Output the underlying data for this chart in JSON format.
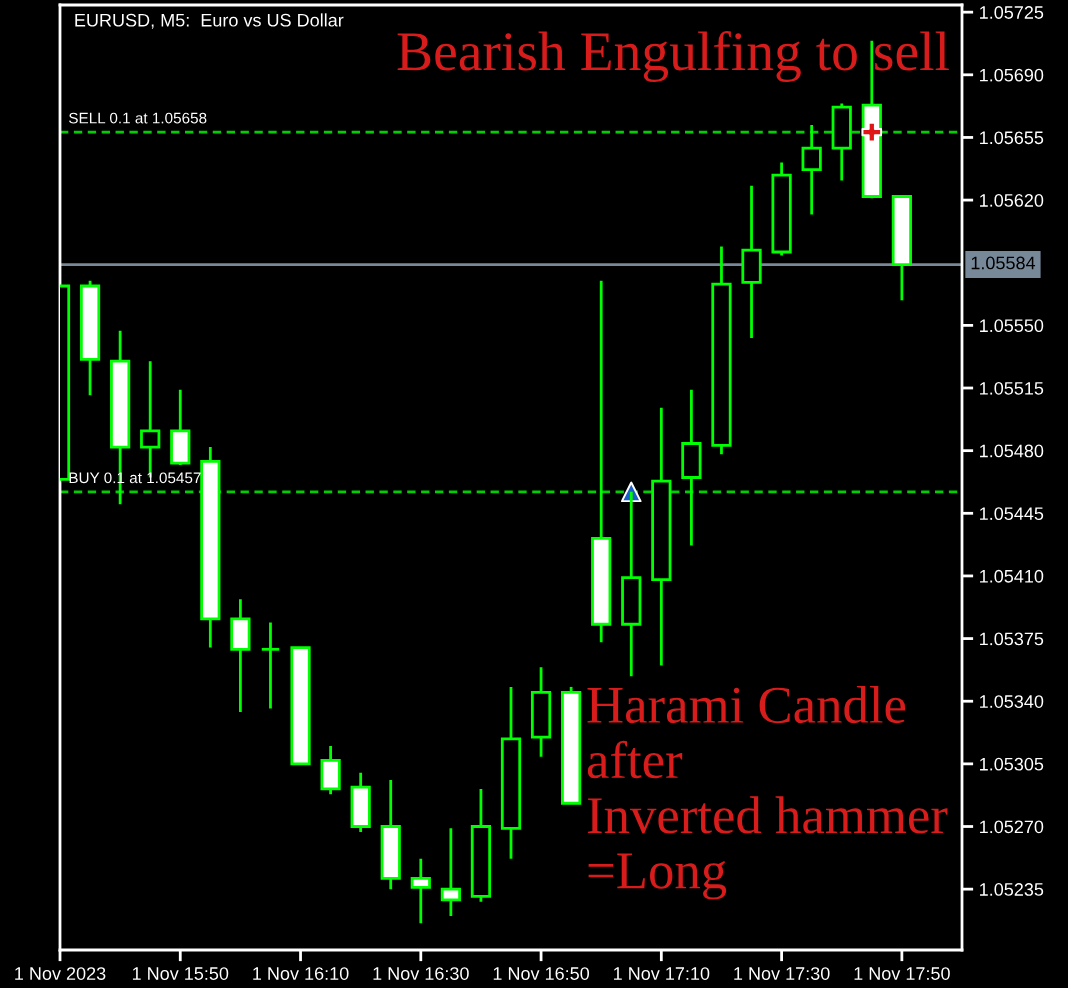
{
  "chart_data": {
    "type": "candlestick",
    "title": "EURUSD, M5:  Euro vs US Dollar",
    "x": [
      "2023-11-01T15:30",
      "2023-11-01T15:35",
      "2023-11-01T15:40",
      "2023-11-01T15:45",
      "2023-11-01T15:50",
      "2023-11-01T15:55",
      "2023-11-01T16:00",
      "2023-11-01T16:05",
      "2023-11-01T16:10",
      "2023-11-01T16:15",
      "2023-11-01T16:20",
      "2023-11-01T16:25",
      "2023-11-01T16:30",
      "2023-11-01T16:35",
      "2023-11-01T16:40",
      "2023-11-01T16:45",
      "2023-11-01T16:50",
      "2023-11-01T16:55",
      "2023-11-01T17:00",
      "2023-11-01T17:05",
      "2023-11-01T17:10",
      "2023-11-01T17:15",
      "2023-11-01T17:20",
      "2023-11-01T17:25",
      "2023-11-01T17:30",
      "2023-11-01T17:35",
      "2023-11-01T17:40",
      "2023-11-01T17:45",
      "2023-11-01T17:50"
    ],
    "ohlc": [
      [
        1.05464,
        1.05572,
        1.05464,
        1.05572
      ],
      [
        1.05572,
        1.05575,
        1.05511,
        1.05531
      ],
      [
        1.0553,
        1.05547,
        1.0545,
        1.05482
      ],
      [
        1.05482,
        1.0553,
        1.05465,
        1.05491
      ],
      [
        1.05491,
        1.05514,
        1.05472,
        1.05473
      ],
      [
        1.05474,
        1.05482,
        1.0537,
        1.05386
      ],
      [
        1.05386,
        1.05397,
        1.05334,
        1.05369
      ],
      [
        1.05369,
        1.05384,
        1.05336,
        1.05369
      ],
      [
        1.0537,
        1.0537,
        1.05305,
        1.05305
      ],
      [
        1.05307,
        1.05315,
        1.05288,
        1.05291
      ],
      [
        1.05292,
        1.053,
        1.05267,
        1.0527
      ],
      [
        1.0527,
        1.05296,
        1.05235,
        1.05241
      ],
      [
        1.05241,
        1.05252,
        1.05216,
        1.05236
      ],
      [
        1.05235,
        1.05269,
        1.0522,
        1.05229
      ],
      [
        1.05231,
        1.05291,
        1.05228,
        1.0527
      ],
      [
        1.05269,
        1.05348,
        1.05252,
        1.05319
      ],
      [
        1.0532,
        1.05359,
        1.05309,
        1.05345
      ],
      [
        1.05345,
        1.05348,
        1.05283,
        1.05283
      ],
      [
        1.05431,
        1.05575,
        1.05373,
        1.05383
      ],
      [
        1.05383,
        1.05457,
        1.05354,
        1.05409
      ],
      [
        1.05408,
        1.05504,
        1.0536,
        1.05463
      ],
      [
        1.05465,
        1.05514,
        1.05427,
        1.05484
      ],
      [
        1.05483,
        1.05594,
        1.05478,
        1.05573
      ],
      [
        1.05574,
        1.05628,
        1.05543,
        1.05592
      ],
      [
        1.05591,
        1.05641,
        1.05589,
        1.05634
      ],
      [
        1.05637,
        1.05662,
        1.05612,
        1.05649
      ],
      [
        1.05649,
        1.05674,
        1.05631,
        1.05672
      ],
      [
        1.05673,
        1.05709,
        1.05621,
        1.05622
      ],
      [
        1.05622,
        1.05622,
        1.05564,
        1.05584
      ]
    ],
    "color": "#00ff00",
    "colors": [
      "#000000",
      "#ffffff",
      "#ffffff",
      "#000000",
      "#ffffff",
      "#ffffff",
      "#ffffff",
      "#00ff00",
      "#ffffff",
      "#ffffff",
      "#ffffff",
      "#ffffff",
      "#ffffff",
      "#ffffff",
      "#000000",
      "#000000",
      "#000000",
      "#ffffff",
      "#ffffff",
      "#000000",
      "#000000",
      "#000000",
      "#000000",
      "#000000",
      "#000000",
      "#000000",
      "#000000",
      "#ffffff",
      "#ffffff"
    ],
    "series": [
      {
        "type": "scatter",
        "x": [
          "2023-11-01T17:05"
        ],
        "values": [
          1.05457
        ],
        "color": "#1a5fc8",
        "marker": "triangle"
      },
      {
        "type": "scatter",
        "x": [
          "2023-11-01T17:45"
        ],
        "values": [
          1.05658
        ],
        "color": "#e01515",
        "marker": "cross"
      }
    ],
    "ref_lines": [
      {
        "axis": "y",
        "value": 1.05658,
        "label": "SELL 0.1 at 1.05658",
        "color": "#00d000",
        "line_style": "dashed"
      },
      {
        "axis": "y",
        "value": 1.05457,
        "label": "BUY 0.1 at 1.05457",
        "color": "#00d000",
        "line_style": "dashed"
      },
      {
        "axis": "y",
        "value": 1.05584,
        "label": "1.05584",
        "color": "#778899",
        "line_style": "solid"
      }
    ],
    "annotations": [
      "Bearish Engulfing to sell",
      "Harami Candle\nafter\nInverted hammer\n=Long"
    ],
    "xlim": [
      "2023-11-01T15:30",
      "2023-11-01T18:00"
    ],
    "xticks": [
      {
        "value": "2023-11-01T15:30",
        "label": "1 Nov 2023"
      },
      {
        "value": "2023-11-01T15:50",
        "label": "1 Nov 15:50"
      },
      {
        "value": "2023-11-01T16:10",
        "label": "1 Nov 16:10"
      },
      {
        "value": "2023-11-01T16:30",
        "label": "1 Nov 16:30"
      },
      {
        "value": "2023-11-01T16:50",
        "label": "1 Nov 16:50"
      },
      {
        "value": "2023-11-01T17:10",
        "label": "1 Nov 17:10"
      },
      {
        "value": "2023-11-01T17:30",
        "label": "1 Nov 17:30"
      },
      {
        "value": "2023-11-01T17:50",
        "label": "1 Nov 17:50"
      }
    ],
    "ylim": [
      1.05201,
      1.05729
    ],
    "yticks": [
      1.05235,
      {
        "value": 1.0527,
        "label": "1.05270"
      },
      1.05305,
      {
        "value": 1.0534,
        "label": "1.05340"
      },
      1.05375,
      {
        "value": 1.0541,
        "label": "1.05410"
      },
      1.05445,
      {
        "value": 1.0548,
        "label": "1.05480"
      },
      1.05515,
      {
        "value": 1.0555,
        "label": "1.05550"
      },
      {
        "value": 1.0562,
        "label": "1.05620"
      },
      1.05655,
      {
        "value": 1.0569,
        "label": "1.05690"
      },
      1.05725
    ]
  }
}
